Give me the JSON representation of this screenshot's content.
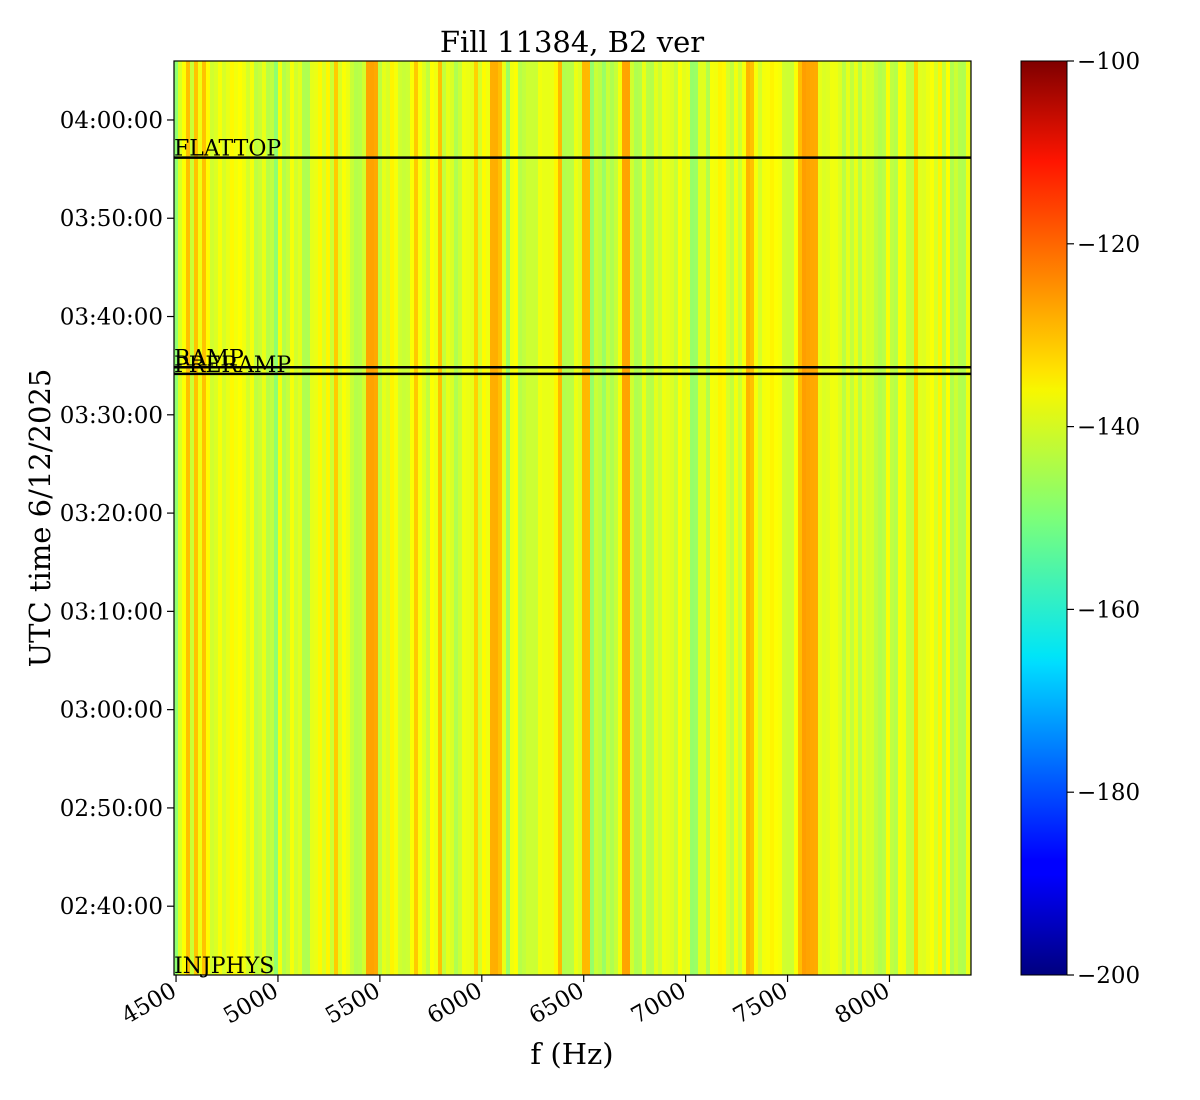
{
  "chart_data": {
    "type": "heatmap",
    "title": "Fill 11384, B2 ver",
    "xlabel": "f (Hz)",
    "ylabel": "UTC time 6/12/2025",
    "xlim": [
      4490,
      8400
    ],
    "x_ticks": [
      4500,
      5000,
      5500,
      6000,
      6500,
      7000,
      7500,
      8000
    ],
    "x_tick_labels": [
      "4500",
      "5000",
      "5500",
      "6000",
      "6500",
      "7000",
      "7500",
      "8000"
    ],
    "ylim": [
      "02:33:00",
      "04:06:00"
    ],
    "y_ticks": [
      "02:40:00",
      "02:50:00",
      "03:00:00",
      "03:10:00",
      "03:20:00",
      "03:30:00",
      "03:40:00",
      "03:50:00",
      "04:00:00"
    ],
    "y_tick_labels": [
      "02:40:00",
      "02:50:00",
      "03:00:00",
      "03:10:00",
      "03:20:00",
      "03:30:00",
      "03:40:00",
      "03:50:00",
      "04:00:00"
    ],
    "colormap": "jet",
    "clim": [
      -200,
      -100
    ],
    "colorbar_ticks": [
      -200,
      -180,
      -160,
      -140,
      -120,
      -100
    ],
    "colorbar_tick_labels": [
      "−200",
      "−180",
      "−160",
      "−140",
      "−120",
      "−100"
    ],
    "typical_value_range": [
      -150,
      -128
    ],
    "band_note_frequencies_hz": [
      5450,
      6050,
      6700,
      7580,
      7620
    ],
    "events": [
      {
        "label": "INJPHYS",
        "time": "02:33:00"
      },
      {
        "label": "PRERAMP",
        "time": "03:34:10"
      },
      {
        "label": "RAMP",
        "time": "03:34:50"
      },
      {
        "label": "FLATTOP",
        "time": "03:56:10"
      }
    ],
    "grid": false
  }
}
